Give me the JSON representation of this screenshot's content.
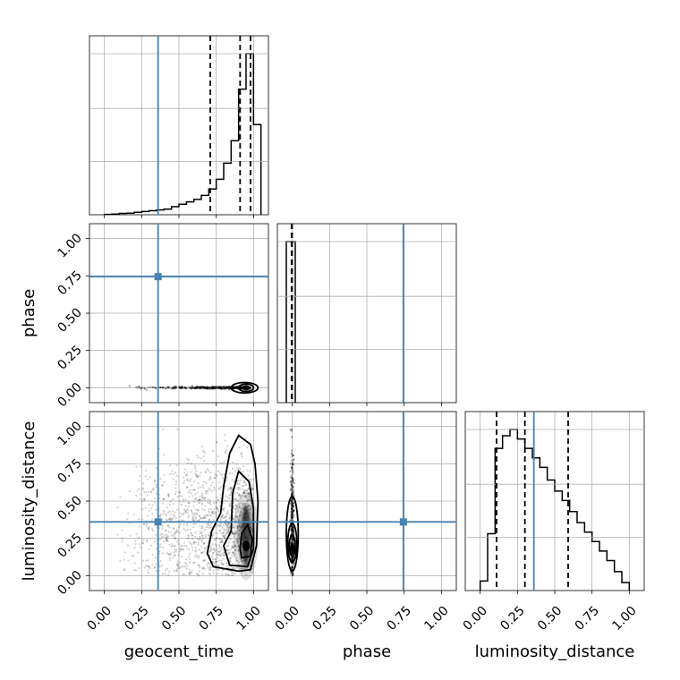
{
  "chart_data": {
    "type": "corner",
    "parameters": [
      "geocent_time",
      "phase",
      "luminosity_distance"
    ],
    "axis_labels": {
      "geocent_time": "geocent_time",
      "phase": "phase",
      "luminosity_distance": "luminosity_distance"
    },
    "ticks": [
      0.0,
      0.25,
      0.5,
      0.75,
      1.0
    ],
    "tick_labels": [
      "0.00",
      "0.25",
      "0.50",
      "0.75",
      "1.00"
    ],
    "axis_range": [
      -0.1,
      1.1
    ],
    "grid": true,
    "truths": {
      "geocent_time": 0.36,
      "phase": 0.745,
      "luminosity_distance": 0.36
    },
    "truth_color": "#4682b4",
    "quantiles": {
      "geocent_time": [
        0.71,
        0.91,
        0.98
      ],
      "phase": [
        -0.005,
        -0.003,
        -0.001
      ],
      "luminosity_distance": [
        0.11,
        0.3,
        0.59
      ]
    },
    "histograms": {
      "geocent_time": {
        "edges": [
          0.0,
          0.05,
          0.1,
          0.15,
          0.2,
          0.25,
          0.3,
          0.35,
          0.4,
          0.45,
          0.5,
          0.55,
          0.6,
          0.65,
          0.7,
          0.75,
          0.8,
          0.85,
          0.9,
          0.95,
          1.0,
          1.05
        ],
        "counts": [
          0.002,
          0.004,
          0.008,
          0.01,
          0.015,
          0.02,
          0.025,
          0.03,
          0.035,
          0.05,
          0.065,
          0.08,
          0.095,
          0.12,
          0.16,
          0.22,
          0.32,
          0.46,
          0.78,
          1.0,
          0.56
        ]
      },
      "phase": {
        "edges": [
          -0.04,
          -0.01,
          0.02
        ],
        "counts": [
          1.0,
          1.0
        ]
      },
      "luminosity_distance": {
        "edges": [
          0.0,
          0.05,
          0.1,
          0.15,
          0.2,
          0.25,
          0.3,
          0.35,
          0.4,
          0.45,
          0.5,
          0.55,
          0.6,
          0.65,
          0.7,
          0.75,
          0.8,
          0.85,
          0.9,
          0.95,
          1.0
        ],
        "counts": [
          0.06,
          0.36,
          0.9,
          0.98,
          1.02,
          0.96,
          0.9,
          0.84,
          0.78,
          0.7,
          0.63,
          0.57,
          0.5,
          0.43,
          0.37,
          0.31,
          0.25,
          0.19,
          0.12,
          0.05
        ]
      }
    },
    "scatter_phase_vs_geocent": {
      "x_range": [
        0.1,
        0.98
      ],
      "y": 0.0,
      "contours": [
        {
          "cx": 0.95,
          "cy": 0.0,
          "rx": 0.05,
          "ry": 0.025
        },
        {
          "cx": 0.94,
          "cy": 0.0,
          "rx": 0.09,
          "ry": 0.035
        }
      ]
    },
    "scatter_distance_vs_geocent": {
      "density_center": [
        0.95,
        0.22
      ],
      "contours": [
        [
          [
            0.92,
            0.12
          ],
          [
            0.98,
            0.13
          ],
          [
            0.99,
            0.25
          ],
          [
            0.96,
            0.34
          ],
          [
            0.92,
            0.28
          ],
          [
            0.91,
            0.18
          ]
        ],
        [
          [
            0.84,
            0.07
          ],
          [
            0.96,
            0.06
          ],
          [
            1.0,
            0.18
          ],
          [
            1.0,
            0.45
          ],
          [
            0.97,
            0.63
          ],
          [
            0.9,
            0.7
          ],
          [
            0.86,
            0.55
          ],
          [
            0.85,
            0.3
          ],
          [
            0.8,
            0.2
          ]
        ],
        [
          [
            0.73,
            0.06
          ],
          [
            0.9,
            0.03
          ],
          [
            0.98,
            0.04
          ],
          [
            1.02,
            0.2
          ],
          [
            1.03,
            0.5
          ],
          [
            1.01,
            0.75
          ],
          [
            0.98,
            0.88
          ],
          [
            0.9,
            0.94
          ],
          [
            0.84,
            0.82
          ],
          [
            0.8,
            0.6
          ],
          [
            0.78,
            0.42
          ],
          [
            0.72,
            0.3
          ],
          [
            0.69,
            0.15
          ]
        ]
      ]
    },
    "scatter_distance_vs_phase": {
      "x": 0.0,
      "y_range": [
        0.0,
        0.98
      ],
      "contours": [
        {
          "cx": 0.0,
          "cy": 0.2,
          "rx": 0.02,
          "ry": 0.07
        },
        {
          "cx": 0.0,
          "cy": 0.22,
          "rx": 0.03,
          "ry": 0.13
        },
        {
          "cx": 0.0,
          "cy": 0.28,
          "rx": 0.04,
          "ry": 0.25
        }
      ]
    }
  }
}
